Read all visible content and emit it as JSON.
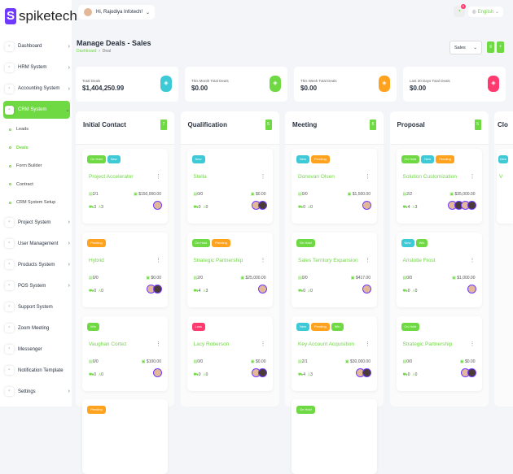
{
  "brand": {
    "name": "spiketech",
    "mark": "S"
  },
  "header": {
    "greeting": "Hi, Rajodiya Infotech!",
    "language": "English",
    "notifications": "0"
  },
  "sidebar": {
    "items": [
      {
        "label": "Dashboard",
        "icon": "home-icon",
        "chevron": true
      },
      {
        "label": "HRM System",
        "icon": "user-icon",
        "chevron": true
      },
      {
        "label": "Accounting System",
        "icon": "calculator-icon",
        "chevron": true
      },
      {
        "label": "CRM System",
        "icon": "layers-icon",
        "chevron": true,
        "active": true,
        "sub": [
          {
            "label": "Leads"
          },
          {
            "label": "Deals",
            "active": true
          },
          {
            "label": "Form Builder"
          },
          {
            "label": "Contract"
          },
          {
            "label": "CRM System Setup"
          }
        ]
      },
      {
        "label": "Project System",
        "icon": "share-icon",
        "chevron": true
      },
      {
        "label": "User Management",
        "icon": "users-icon",
        "chevron": true
      },
      {
        "label": "Products System",
        "icon": "cart-icon",
        "chevron": true
      },
      {
        "label": "POS System",
        "icon": "pos-icon",
        "chevron": true
      },
      {
        "label": "Support System",
        "icon": "headphones-icon",
        "chevron": false
      },
      {
        "label": "Zoom Meeting",
        "icon": "video-icon",
        "chevron": false
      },
      {
        "label": "Messenger",
        "icon": "message-icon",
        "chevron": false
      },
      {
        "label": "Notification Template",
        "icon": "notification-icon",
        "chevron": false
      },
      {
        "label": "Settings",
        "icon": "gear-icon",
        "chevron": true
      }
    ]
  },
  "page": {
    "title": "Manage Deals - Sales",
    "breadcrumb": [
      "Dashboard",
      "Deal"
    ],
    "pipeline": "Sales"
  },
  "stats": [
    {
      "label": "Total Deals",
      "value": "$1,404,250.99",
      "color": "#3ec9d6"
    },
    {
      "label": "This Month Total Deals",
      "value": "$0.00",
      "color": "#6fd943"
    },
    {
      "label": "This Week Total Deals",
      "value": "$0.00",
      "color": "#ffa21d"
    },
    {
      "label": "Last 30 Days Total Deals",
      "value": "$0.00",
      "color": "#ff3a6e"
    }
  ],
  "tag_colors": {
    "On Hold": "#6fd943",
    "New": "#3ec9d6",
    "Pending": "#ffa21d",
    "Win": "#6fd943",
    "Loss": "#ff3a6e"
  },
  "columns": [
    {
      "title": "Initial Contact",
      "count": "7",
      "cards": [
        {
          "tags": [
            "On Hold",
            "New"
          ],
          "title": "Project Accelerator",
          "tasks": "2/1",
          "amount": "$150,000.00",
          "products": "3",
          "sources": "3",
          "avatars": 1
        },
        {
          "tags": [
            "Pending"
          ],
          "title": "Hybrid",
          "tasks": "0/0",
          "amount": "$0.00",
          "products": "0",
          "sources": "0",
          "avatars": 2
        },
        {
          "tags": [
            "Win"
          ],
          "title": "Vaughan Cortez",
          "tasks": "0/0",
          "amount": "$100.00",
          "products": "0",
          "sources": "0",
          "avatars": 1
        },
        {
          "tags": [
            "Pending"
          ],
          "title": "",
          "tasks": "",
          "amount": "",
          "products": "",
          "sources": "",
          "avatars": 0
        }
      ]
    },
    {
      "title": "Qualification",
      "count": "5",
      "cards": [
        {
          "tags": [
            "New"
          ],
          "title": "Stella",
          "tasks": "0/0",
          "amount": "$0.00",
          "products": "0",
          "sources": "0",
          "avatars": 2
        },
        {
          "tags": [
            "On Hold",
            "Pending"
          ],
          "title": "Strategic Partnership",
          "tasks": "2/0",
          "amount": "$25,000.00",
          "products": "4",
          "sources": "3",
          "avatars": 1
        },
        {
          "tags": [
            "Loss"
          ],
          "title": "Lacy Roberson",
          "tasks": "0/0",
          "amount": "$0.00",
          "products": "0",
          "sources": "0",
          "avatars": 2
        }
      ]
    },
    {
      "title": "Meeting",
      "count": "6",
      "cards": [
        {
          "tags": [
            "New",
            "Pending"
          ],
          "title": "Donovan Olsen",
          "tasks": "0/0",
          "amount": "$1,500.00",
          "products": "0",
          "sources": "0",
          "avatars": 1
        },
        {
          "tags": [
            "On Hold"
          ],
          "title": "Sales Territory Expansion",
          "tasks": "0/0",
          "amount": "$417.00",
          "products": "0",
          "sources": "0",
          "avatars": 1
        },
        {
          "tags": [
            "New",
            "Pending",
            "Win"
          ],
          "title": "Key Account Acquisition",
          "tasks": "2/1",
          "amount": "$30,000.00",
          "products": "4",
          "sources": "3",
          "avatars": 2
        },
        {
          "tags": [
            "On Hold"
          ],
          "title": "",
          "tasks": "",
          "amount": "",
          "products": "",
          "sources": "",
          "avatars": 0
        }
      ]
    },
    {
      "title": "Proposal",
      "count": "5",
      "cards": [
        {
          "tags": [
            "On Hold",
            "New",
            "Pending"
          ],
          "title": "Solution Customization",
          "tasks": "2/2",
          "amount": "$35,000.00",
          "products": "4",
          "sources": "3",
          "avatars": 4
        },
        {
          "tags": [
            "New",
            "Win"
          ],
          "title": "Aristotle Frost",
          "tasks": "0/0",
          "amount": "$1,000.00",
          "products": "0",
          "sources": "0",
          "avatars": 1
        },
        {
          "tags": [
            "On Hold"
          ],
          "title": "Strategic Partnership",
          "tasks": "0/0",
          "amount": "$0.00",
          "products": "0",
          "sources": "0",
          "avatars": 2
        }
      ]
    },
    {
      "title": "Clo",
      "count": "",
      "cards": [
        {
          "tags": [
            "New"
          ],
          "title": "V",
          "tasks": "",
          "amount": "",
          "products": "",
          "sources": "",
          "avatars": 0
        }
      ]
    }
  ]
}
